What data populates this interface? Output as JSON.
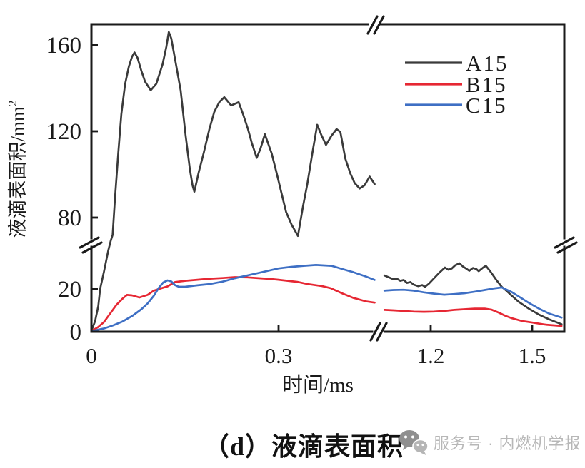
{
  "figure": {
    "caption": "（d）液滴表面积",
    "watermark": {
      "icon": "wechat-official-account-icon",
      "text": "服务号 · 内燃机学报"
    }
  },
  "chart_data": {
    "type": "line",
    "title": "",
    "grid": false,
    "broken_axes": true,
    "x_axis": {
      "label": "时间/ms",
      "unit": "ms",
      "ticks_left": [
        {
          "value": 0,
          "label": "0"
        },
        {
          "value": 0.3,
          "label": "0.3"
        }
      ],
      "ticks_right": [
        {
          "value": 1.2,
          "label": "1.2"
        },
        {
          "value": 1.5,
          "label": "1.5"
        }
      ],
      "range_left": [
        0,
        0.455
      ],
      "range_right": [
        1.063,
        1.6
      ],
      "break_between": [
        0.455,
        1.063
      ]
    },
    "y_axis": {
      "label": "液滴表面积/mm²",
      "label_base": "液滴表面积/mm",
      "label_sup": "2",
      "unit": "mm²",
      "ticks_lower": [
        {
          "value": 0,
          "label": "0"
        },
        {
          "value": 20,
          "label": "20"
        }
      ],
      "ticks_upper": [
        {
          "value": 80,
          "label": "80"
        },
        {
          "value": 120,
          "label": "120"
        },
        {
          "value": 160,
          "label": "160"
        }
      ],
      "range_lower": [
        0,
        42
      ],
      "range_upper": [
        70,
        142
      ],
      "break_between": [
        42,
        70
      ]
    },
    "legend": {
      "position": "upper-right",
      "entries": [
        "A15",
        "B15",
        "C15"
      ]
    },
    "series": [
      {
        "name": "A15",
        "color": "#3a3a3a",
        "segments": [
          [
            [
              0,
              0.5
            ],
            [
              0.006,
              5
            ],
            [
              0.011,
              12
            ],
            [
              0.014,
              20
            ],
            [
              0.02,
              28
            ],
            [
              0.027,
              38
            ],
            [
              0.031,
              55
            ],
            [
              0.034,
              72
            ],
            [
              0.038,
              90
            ],
            [
              0.043,
              110
            ],
            [
              0.048,
              128
            ],
            [
              0.054,
              142
            ],
            [
              0.06,
              150
            ],
            [
              0.065,
              154.5
            ],
            [
              0.069,
              156.5
            ],
            [
              0.074,
              154
            ],
            [
              0.08,
              148
            ],
            [
              0.086,
              143
            ],
            [
              0.095,
              139
            ],
            [
              0.104,
              142
            ],
            [
              0.114,
              151
            ],
            [
              0.12,
              159
            ],
            [
              0.124,
              166
            ],
            [
              0.128,
              163
            ],
            [
              0.133,
              155
            ],
            [
              0.143,
              139
            ],
            [
              0.151,
              118
            ],
            [
              0.158,
              102
            ],
            [
              0.162,
              95
            ],
            [
              0.165,
              92
            ],
            [
              0.172,
              101
            ],
            [
              0.18,
              110
            ],
            [
              0.189,
              121
            ],
            [
              0.197,
              129
            ],
            [
              0.205,
              133.5
            ],
            [
              0.213,
              135.8
            ],
            [
              0.224,
              132
            ],
            [
              0.236,
              133.5
            ],
            [
              0.243,
              128
            ],
            [
              0.251,
              121
            ],
            [
              0.257,
              114.7
            ],
            [
              0.265,
              107.7
            ],
            [
              0.271,
              112
            ],
            [
              0.278,
              118.6
            ],
            [
              0.289,
              109.7
            ],
            [
              0.297,
              100.5
            ],
            [
              0.305,
              90.9
            ],
            [
              0.312,
              82.6
            ],
            [
              0.321,
              76.7
            ],
            [
              0.331,
              71.5
            ],
            [
              0.339,
              85
            ],
            [
              0.346,
              95.5
            ],
            [
              0.354,
              109.7
            ],
            [
              0.362,
              123
            ],
            [
              0.369,
              118
            ],
            [
              0.376,
              113.7
            ],
            [
              0.385,
              118
            ],
            [
              0.393,
              121
            ],
            [
              0.399,
              119.7
            ],
            [
              0.407,
              107.4
            ],
            [
              0.415,
              100.5
            ],
            [
              0.422,
              96
            ],
            [
              0.43,
              93.5
            ],
            [
              0.438,
              95
            ],
            [
              0.446,
              99
            ],
            [
              0.454,
              95.5
            ]
          ],
          [
            [
              1.063,
              26.3
            ],
            [
              1.075,
              25.5
            ],
            [
              1.09,
              24.5
            ],
            [
              1.1,
              24.8
            ],
            [
              1.11,
              23.8
            ],
            [
              1.12,
              24.2
            ],
            [
              1.13,
              22.8
            ],
            [
              1.14,
              23.2
            ],
            [
              1.15,
              22
            ],
            [
              1.163,
              21.3
            ],
            [
              1.175,
              21.8
            ],
            [
              1.183,
              21
            ],
            [
              1.195,
              22.5
            ],
            [
              1.21,
              25
            ],
            [
              1.225,
              27.5
            ],
            [
              1.242,
              30
            ],
            [
              1.252,
              29
            ],
            [
              1.262,
              29.5
            ],
            [
              1.272,
              31
            ],
            [
              1.285,
              32
            ],
            [
              1.295,
              30.5
            ],
            [
              1.305,
              29.5
            ],
            [
              1.314,
              28.5
            ],
            [
              1.325,
              29.8
            ],
            [
              1.335,
              29.3
            ],
            [
              1.342,
              28.3
            ],
            [
              1.355,
              30
            ],
            [
              1.363,
              30.8
            ],
            [
              1.375,
              28.5
            ],
            [
              1.395,
              24
            ],
            [
              1.41,
              21
            ],
            [
              1.425,
              19
            ],
            [
              1.44,
              16.8
            ],
            [
              1.46,
              14
            ],
            [
              1.49,
              10.8
            ],
            [
              1.52,
              8
            ],
            [
              1.55,
              5.8
            ],
            [
              1.587,
              3.5
            ]
          ]
        ]
      },
      {
        "name": "B15",
        "color": "#e62733",
        "segments": [
          [
            [
              0,
              0.4
            ],
            [
              0.01,
              2
            ],
            [
              0.02,
              4.5
            ],
            [
              0.03,
              8.5
            ],
            [
              0.04,
              12.5
            ],
            [
              0.05,
              15.5
            ],
            [
              0.057,
              17.2
            ],
            [
              0.065,
              17
            ],
            [
              0.077,
              16
            ],
            [
              0.09,
              17.2
            ],
            [
              0.1,
              19.2
            ],
            [
              0.112,
              20.3
            ],
            [
              0.122,
              21.2
            ],
            [
              0.134,
              23.2
            ],
            [
              0.15,
              23.8
            ],
            [
              0.17,
              24.3
            ],
            [
              0.19,
              24.8
            ],
            [
              0.21,
              25.1
            ],
            [
              0.23,
              25.5
            ],
            [
              0.25,
              25.4
            ],
            [
              0.27,
              25
            ],
            [
              0.285,
              24.7
            ],
            [
              0.3,
              24.3
            ],
            [
              0.33,
              23.3
            ],
            [
              0.346,
              22.3
            ],
            [
              0.37,
              21.3
            ],
            [
              0.384,
              20.3
            ],
            [
              0.403,
              17.8
            ],
            [
              0.42,
              15.8
            ],
            [
              0.44,
              14.2
            ],
            [
              0.454,
              13.6
            ]
          ],
          [
            [
              1.063,
              10.2
            ],
            [
              1.09,
              10
            ],
            [
              1.12,
              9.7
            ],
            [
              1.15,
              9.4
            ],
            [
              1.18,
              9.3
            ],
            [
              1.21,
              9.4
            ],
            [
              1.24,
              9.7
            ],
            [
              1.27,
              10.2
            ],
            [
              1.3,
              10.5
            ],
            [
              1.33,
              10.8
            ],
            [
              1.36,
              10.8
            ],
            [
              1.38,
              10.3
            ],
            [
              1.4,
              9
            ],
            [
              1.42,
              7.5
            ],
            [
              1.44,
              6.3
            ],
            [
              1.47,
              5
            ],
            [
              1.5,
              4.3
            ],
            [
              1.54,
              3.3
            ],
            [
              1.587,
              2.7
            ]
          ]
        ]
      },
      {
        "name": "C15",
        "color": "#3e6fc4",
        "segments": [
          [
            [
              0,
              0.3
            ],
            [
              0.02,
              1.5
            ],
            [
              0.035,
              3
            ],
            [
              0.05,
              4.8
            ],
            [
              0.065,
              7.3
            ],
            [
              0.08,
              10.5
            ],
            [
              0.09,
              13.2
            ],
            [
              0.1,
              16.8
            ],
            [
              0.108,
              20.5
            ],
            [
              0.115,
              23
            ],
            [
              0.122,
              24
            ],
            [
              0.128,
              23.5
            ],
            [
              0.134,
              21.8
            ],
            [
              0.14,
              21
            ],
            [
              0.15,
              21
            ],
            [
              0.17,
              21.7
            ],
            [
              0.19,
              22.3
            ],
            [
              0.21,
              23.4
            ],
            [
              0.23,
              25
            ],
            [
              0.25,
              26.3
            ],
            [
              0.27,
              27.6
            ],
            [
              0.285,
              28.6
            ],
            [
              0.3,
              29.6
            ],
            [
              0.32,
              30.3
            ],
            [
              0.34,
              30.8
            ],
            [
              0.36,
              31.2
            ],
            [
              0.385,
              30.8
            ],
            [
              0.4,
              29.5
            ],
            [
              0.42,
              27.8
            ],
            [
              0.44,
              25.8
            ],
            [
              0.454,
              24.2
            ]
          ],
          [
            [
              1.063,
              19.2
            ],
            [
              1.09,
              19.5
            ],
            [
              1.12,
              19.6
            ],
            [
              1.15,
              19.2
            ],
            [
              1.18,
              18.4
            ],
            [
              1.21,
              17.8
            ],
            [
              1.24,
              17.3
            ],
            [
              1.27,
              17.6
            ],
            [
              1.3,
              18
            ],
            [
              1.33,
              18.7
            ],
            [
              1.36,
              19.5
            ],
            [
              1.385,
              20.2
            ],
            [
              1.41,
              20.7
            ],
            [
              1.44,
              18.5
            ],
            [
              1.46,
              16.5
            ],
            [
              1.49,
              13.5
            ],
            [
              1.52,
              10.8
            ],
            [
              1.55,
              8.5
            ],
            [
              1.587,
              6.6
            ]
          ]
        ]
      }
    ]
  }
}
